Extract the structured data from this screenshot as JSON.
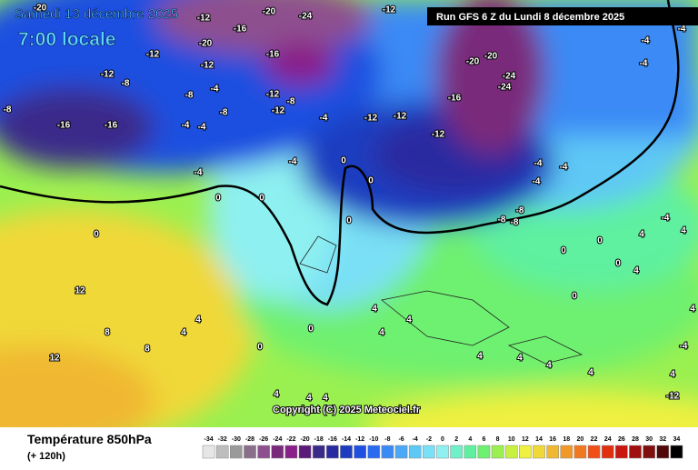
{
  "header": {
    "date": "Samedi 13 décembre 2025",
    "time": "7:00 locale",
    "run": "Run GFS 6 Z du Lundi 8 décembre 2025"
  },
  "copyright": "Copyright (C) 2025 Meteociel.fr",
  "footer": {
    "title": "Température 850hPa",
    "lead": "(+ 120h)"
  },
  "contour_labels": [
    -20,
    -12,
    -20,
    -24,
    -12,
    -20,
    -16,
    -12,
    -12,
    -16,
    -12,
    -8,
    -4,
    -8,
    -8,
    -12,
    -8,
    -16,
    -16,
    -4,
    -4,
    -12,
    -8,
    -12,
    -12,
    -16,
    -12,
    -20,
    -24,
    -24,
    -20,
    -4,
    -4,
    -4,
    -4,
    -4,
    -4,
    -4,
    0,
    0,
    0,
    0,
    0,
    0,
    -4,
    -4,
    -4,
    -8,
    -8,
    -8,
    0,
    0,
    0,
    4,
    -4,
    4,
    12,
    8,
    12,
    8,
    4,
    4,
    0,
    0,
    4,
    4,
    4,
    4,
    4,
    4,
    4,
    4,
    -12,
    -4,
    4,
    4,
    4,
    4,
    4,
    0
  ],
  "scale": {
    "values": [
      -34,
      -32,
      -30,
      -28,
      -26,
      -24,
      -22,
      -20,
      -18,
      -16,
      -14,
      -12,
      -10,
      -8,
      -6,
      -4,
      -2,
      0,
      2,
      4,
      6,
      8,
      10,
      12,
      14,
      16,
      18,
      20,
      22,
      24,
      26,
      28,
      30,
      32,
      34
    ],
    "colors": [
      "#e6e6e6",
      "#bdbdbd",
      "#9a9a9a",
      "#8a6f8a",
      "#8e4f8e",
      "#7a2a7a",
      "#8a1e8a",
      "#5a1a7a",
      "#3a2a8a",
      "#2a2aa0",
      "#1e3cc0",
      "#1e4fe0",
      "#2a6af0",
      "#3a8af5",
      "#4aa8f5",
      "#5ec8f5",
      "#7ae0f5",
      "#8ef0f0",
      "#70f0c8",
      "#5ef0a0",
      "#6ef070",
      "#9af050",
      "#c8f040",
      "#f0f040",
      "#f0d838",
      "#f0b830",
      "#f09828",
      "#f07820",
      "#f05018",
      "#e03010",
      "#c81810",
      "#a01010",
      "#801010",
      "#500808",
      "#000000"
    ]
  }
}
